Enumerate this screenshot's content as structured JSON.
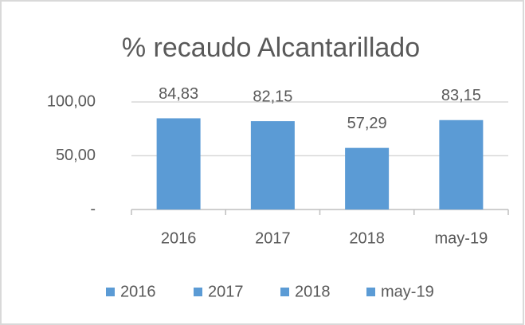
{
  "chart_data": {
    "type": "bar",
    "title": "% recaudo Alcantarillado",
    "categories": [
      "2016",
      "2017",
      "2018",
      "may-19"
    ],
    "values": [
      84.83,
      82.15,
      57.29,
      83.15
    ],
    "value_labels": [
      "84,83",
      "82,15",
      "57,29",
      "83,15"
    ],
    "color": "#5b9bd5",
    "ylim": [
      0,
      100
    ],
    "yticks": [
      {
        "value": 0,
        "label": "-"
      },
      {
        "value": 50,
        "label": "50,00"
      },
      {
        "value": 100,
        "label": "100,00"
      }
    ],
    "grid": true,
    "legend": {
      "position": "bottom",
      "entries": [
        "2016",
        "2017",
        "2018",
        "may-19"
      ]
    }
  }
}
